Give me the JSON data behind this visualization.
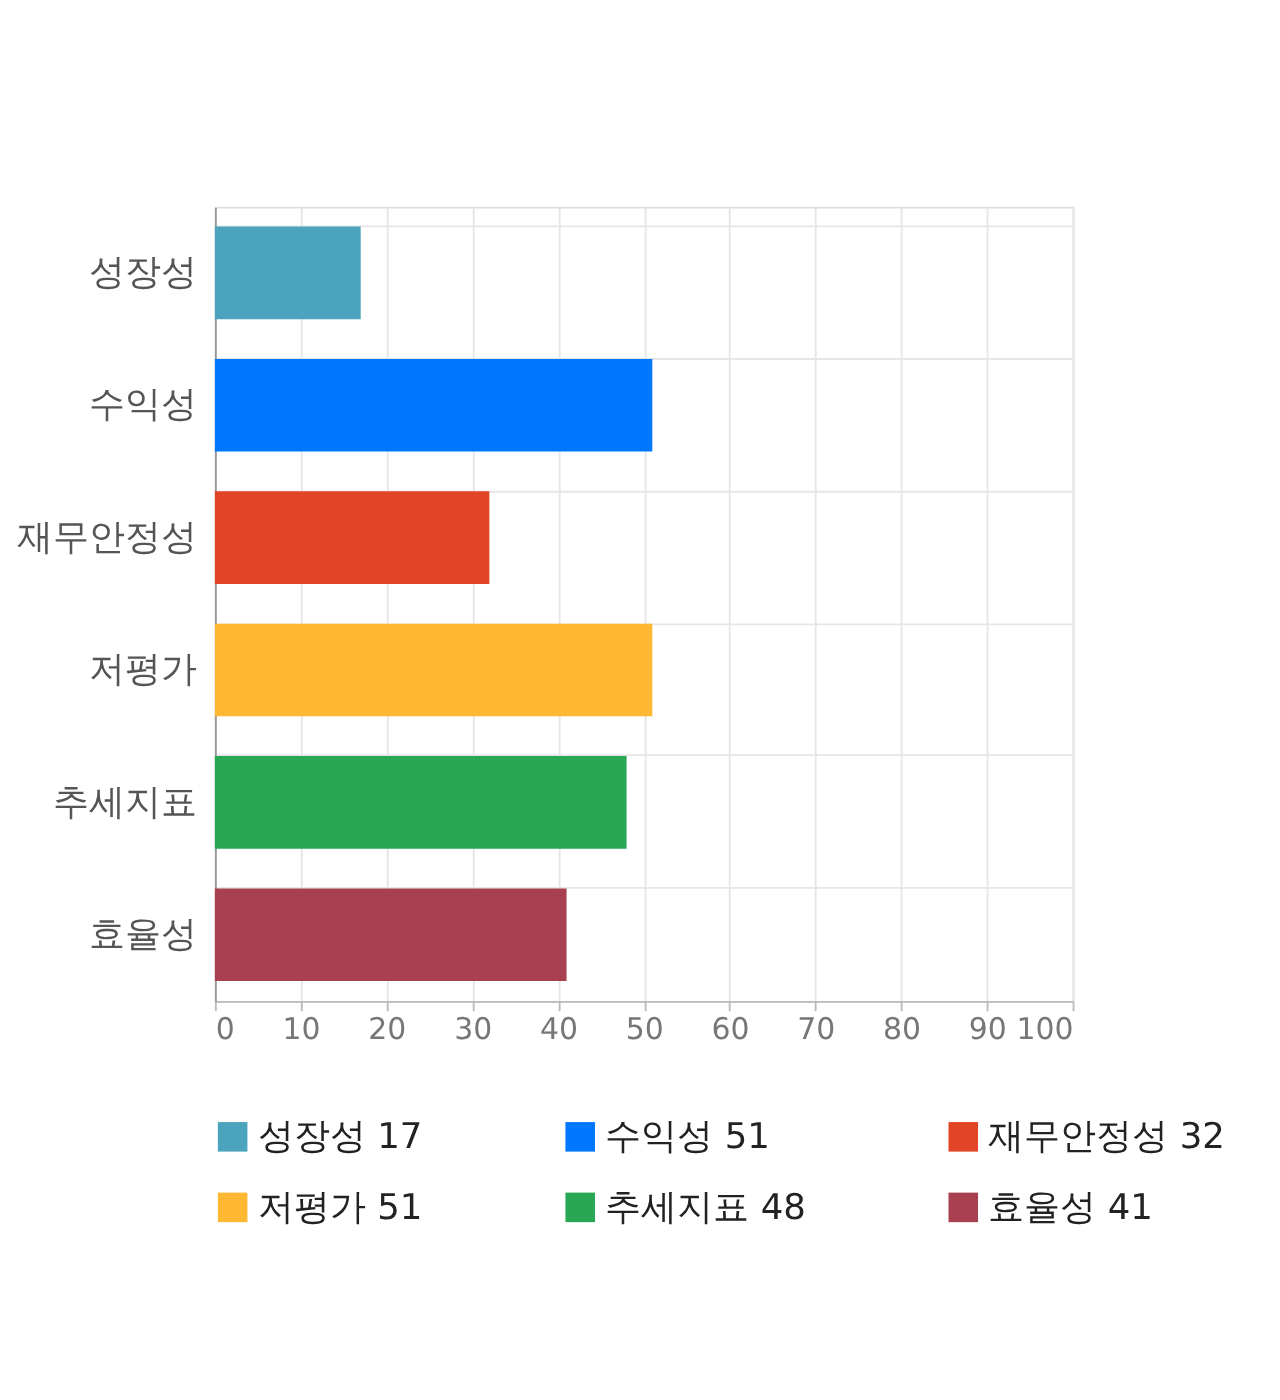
{
  "chart_data": {
    "type": "bar",
    "orientation": "horizontal",
    "categories": [
      "성장성",
      "수익성",
      "재무안정성",
      "저평가",
      "추세지표",
      "효율성"
    ],
    "series": [
      {
        "name": "성장성 17",
        "color": "#4ba3bd",
        "values": [
          17,
          null,
          null,
          null,
          null,
          null
        ]
      },
      {
        "name": "수익성 51",
        "color": "#0077ff",
        "values": [
          null,
          51,
          null,
          null,
          null,
          null
        ]
      },
      {
        "name": "재무안정성 32",
        "color": "#e24525",
        "values": [
          null,
          null,
          32,
          null,
          null,
          null
        ]
      },
      {
        "name": "저평가 51",
        "color": "#ffb833",
        "values": [
          null,
          null,
          null,
          51,
          null,
          null
        ]
      },
      {
        "name": "추세지표 48",
        "color": "#2aa755",
        "values": [
          null,
          null,
          null,
          null,
          48,
          null
        ]
      },
      {
        "name": "효율성 41",
        "color": "#a8404f",
        "values": [
          null,
          null,
          null,
          null,
          null,
          41
        ]
      }
    ],
    "xlim": [
      0,
      100
    ],
    "xticks": [
      0,
      10,
      20,
      30,
      40,
      50,
      60,
      70,
      80,
      90,
      100
    ],
    "grid": true,
    "legend": "bottom"
  }
}
